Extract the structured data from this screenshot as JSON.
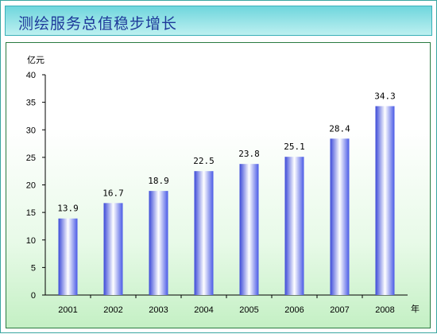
{
  "header": {
    "title": "测绘服务总值稳步增长"
  },
  "chart_data": {
    "type": "bar",
    "title": "测绘服务总值稳步增长",
    "ylabel": "亿元",
    "xlabel": "年",
    "ylim": [
      0,
      40
    ],
    "yticks": [
      0,
      5,
      10,
      15,
      20,
      25,
      30,
      35,
      40
    ],
    "categories": [
      "2001",
      "2002",
      "2003",
      "2004",
      "2005",
      "2006",
      "2007",
      "2008"
    ],
    "values": [
      13.9,
      16.7,
      18.9,
      22.5,
      23.8,
      25.1,
      28.4,
      34.3
    ],
    "value_labels": [
      "13.9",
      "16.7",
      "18.9",
      "22.5",
      "23.8",
      "25.1",
      "28.4",
      "34.3"
    ],
    "grid": false,
    "colors": {
      "bar_edge": "#3b49d8",
      "bar_center": "#ffffff",
      "bar_side": "#4a5ae6"
    }
  }
}
